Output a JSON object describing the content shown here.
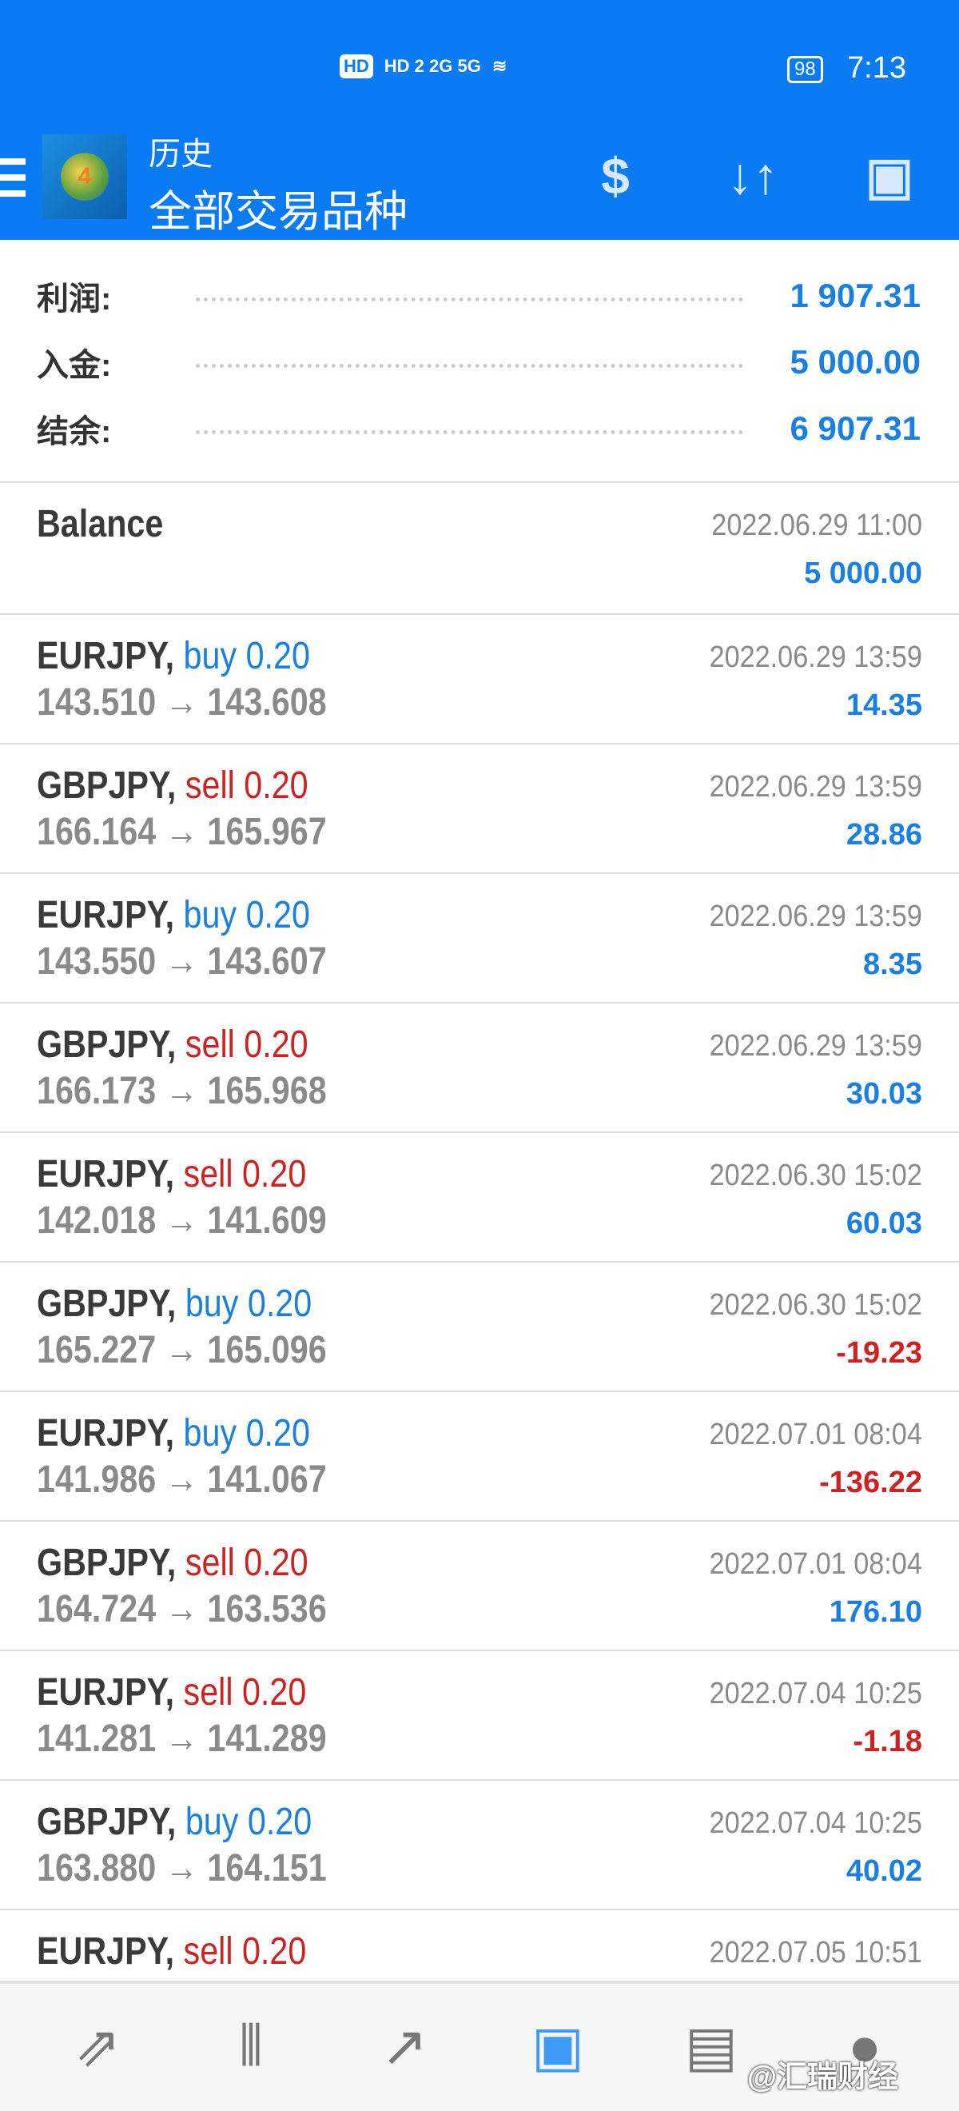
{
  "status_bar": {
    "network": "HD 2  2G  5G",
    "battery": "98",
    "time": "7:13"
  },
  "header": {
    "subtitle": "历史",
    "title": "全部交易品种",
    "icons": [
      "menu-icon",
      "mt4-logo",
      "currency-exchange-icon",
      "sort-icon",
      "calendar-contact-icon"
    ]
  },
  "summary": [
    {
      "label": "利润:",
      "value": "1 907.31"
    },
    {
      "label": "入金:",
      "value": "5 000.00"
    },
    {
      "label": "结余:",
      "value": "6 907.31"
    }
  ],
  "balance": {
    "label": "Balance",
    "date": "2022.06.29 11:00",
    "value": "5 000.00"
  },
  "trades": [
    {
      "symbol": "EURJPY,",
      "side": "buy 0.20",
      "type": "buy",
      "prices": "143.510 → 143.608",
      "date": "2022.06.29 13:59",
      "profit": "14.35",
      "sign": "pos"
    },
    {
      "symbol": "GBPJPY,",
      "side": "sell 0.20",
      "type": "sell",
      "prices": "166.164 → 165.967",
      "date": "2022.06.29 13:59",
      "profit": "28.86",
      "sign": "pos"
    },
    {
      "symbol": "EURJPY,",
      "side": "buy 0.20",
      "type": "buy",
      "prices": "143.550 → 143.607",
      "date": "2022.06.29 13:59",
      "profit": "8.35",
      "sign": "pos"
    },
    {
      "symbol": "GBPJPY,",
      "side": "sell 0.20",
      "type": "sell",
      "prices": "166.173 → 165.968",
      "date": "2022.06.29 13:59",
      "profit": "30.03",
      "sign": "pos"
    },
    {
      "symbol": "EURJPY,",
      "side": "sell 0.20",
      "type": "sell",
      "prices": "142.018 → 141.609",
      "date": "2022.06.30 15:02",
      "profit": "60.03",
      "sign": "pos"
    },
    {
      "symbol": "GBPJPY,",
      "side": "buy 0.20",
      "type": "buy",
      "prices": "165.227 → 165.096",
      "date": "2022.06.30 15:02",
      "profit": "-19.23",
      "sign": "neg"
    },
    {
      "symbol": "EURJPY,",
      "side": "buy 0.20",
      "type": "buy",
      "prices": "141.986 → 141.067",
      "date": "2022.07.01 08:04",
      "profit": "-136.22",
      "sign": "neg"
    },
    {
      "symbol": "GBPJPY,",
      "side": "sell 0.20",
      "type": "sell",
      "prices": "164.724 → 163.536",
      "date": "2022.07.01 08:04",
      "profit": "176.10",
      "sign": "pos"
    },
    {
      "symbol": "EURJPY,",
      "side": "sell 0.20",
      "type": "sell",
      "prices": "141.281 → 141.289",
      "date": "2022.07.04 10:25",
      "profit": "-1.18",
      "sign": "neg"
    },
    {
      "symbol": "GBPJPY,",
      "side": "buy 0.20",
      "type": "buy",
      "prices": "163.880 → 164.151",
      "date": "2022.07.04 10:25",
      "profit": "40.02",
      "sign": "pos"
    },
    {
      "symbol": "EURJPY,",
      "side": "sell 0.20",
      "type": "sell",
      "prices": "",
      "date": "2022.07.05 10:51",
      "profit": "",
      "sign": "pos"
    }
  ],
  "nav": [
    {
      "name": "quotes",
      "icon": "arrows-diagonal-icon",
      "glyph": "⇗"
    },
    {
      "name": "charts",
      "icon": "candlestick-icon",
      "glyph": "⫴"
    },
    {
      "name": "trade",
      "icon": "trend-icon",
      "glyph": "↗"
    },
    {
      "name": "history",
      "icon": "inbox-icon",
      "glyph": "▣",
      "active": true
    },
    {
      "name": "news",
      "icon": "newspaper-icon",
      "glyph": "▤"
    },
    {
      "name": "chat",
      "icon": "chat-icon",
      "glyph": "●"
    }
  ],
  "watermark": "@汇瑞财经",
  "colors": {
    "header": "#0b7bf3",
    "buy": "#1a7fe0",
    "sell": "#cc2222",
    "active_nav": "#3d9af5"
  }
}
